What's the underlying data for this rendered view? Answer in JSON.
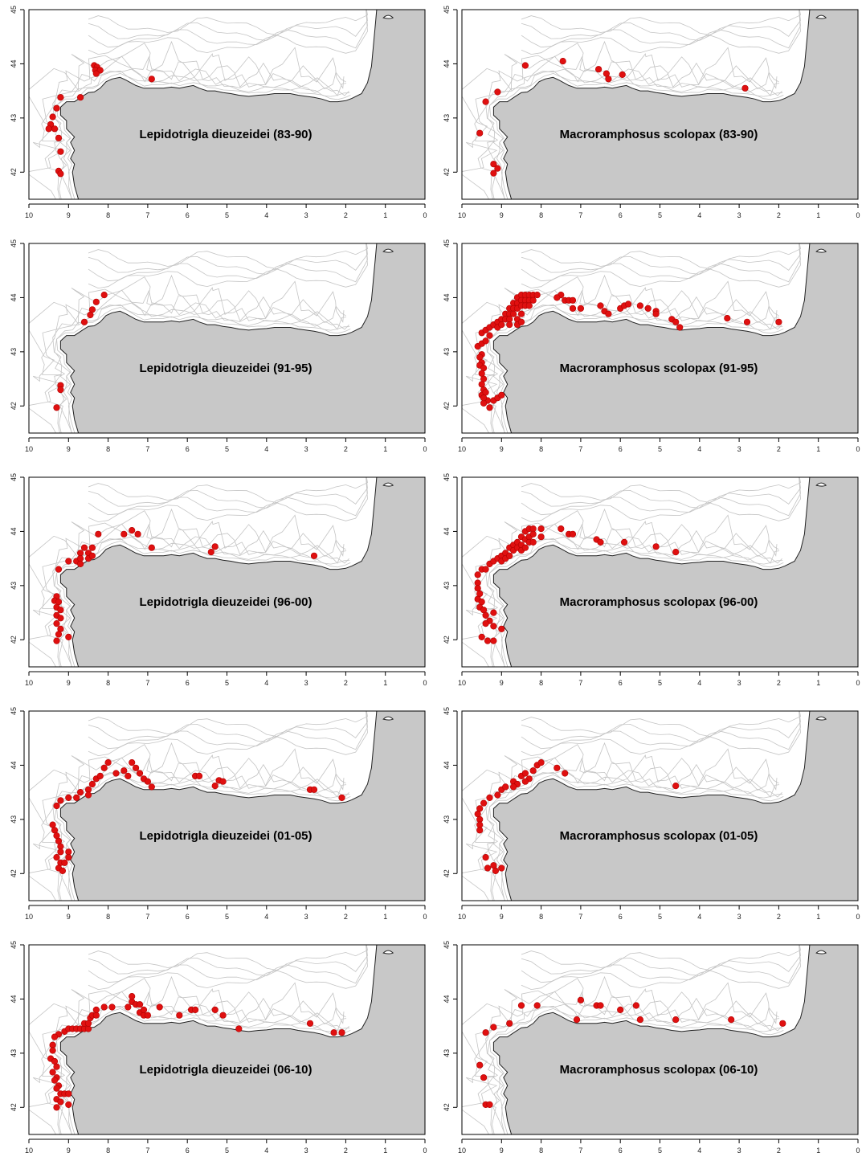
{
  "axes": {
    "x_ticks": [
      "10",
      "9",
      "8",
      "7",
      "6",
      "5",
      "4",
      "3",
      "2",
      "1",
      "0"
    ],
    "y_ticks": [
      "42",
      "43",
      "44",
      "45"
    ],
    "xlim": [
      10,
      0
    ],
    "ylim": [
      41.5,
      45
    ],
    "grid": false
  },
  "colors": {
    "land": "#c8c8c8",
    "ocean": "#ffffff",
    "isobath": "#c4c4c4",
    "point": "#e01010",
    "point_stroke": "#b00000",
    "frame": "#000000"
  },
  "panels": [
    {
      "title": "Lepidotrigla dieuzeidei (83-90)",
      "points": [
        [
          8.35,
          43.97
        ],
        [
          8.28,
          43.94
        ],
        [
          8.32,
          43.88
        ],
        [
          8.2,
          43.88
        ],
        [
          8.3,
          43.82
        ],
        [
          6.9,
          43.72
        ],
        [
          8.7,
          43.38
        ],
        [
          9.2,
          43.38
        ],
        [
          9.3,
          43.18
        ],
        [
          9.4,
          43.02
        ],
        [
          9.45,
          42.88
        ],
        [
          9.35,
          42.8
        ],
        [
          9.5,
          42.8
        ],
        [
          9.25,
          42.63
        ],
        [
          9.2,
          42.38
        ],
        [
          9.25,
          42.02
        ],
        [
          9.2,
          41.97
        ]
      ]
    },
    {
      "title": "Macroramphosus scolopax (83-90)",
      "points": [
        [
          8.4,
          43.97
        ],
        [
          7.45,
          44.05
        ],
        [
          6.55,
          43.9
        ],
        [
          6.35,
          43.82
        ],
        [
          6.3,
          43.72
        ],
        [
          5.95,
          43.8
        ],
        [
          2.85,
          43.55
        ],
        [
          9.1,
          43.48
        ],
        [
          9.4,
          43.3
        ],
        [
          9.55,
          42.72
        ],
        [
          9.2,
          42.15
        ],
        [
          9.2,
          41.98
        ],
        [
          9.1,
          42.07
        ]
      ]
    },
    {
      "title": "Lepidotrigla dieuzeidei (91-95)",
      "points": [
        [
          8.1,
          44.05
        ],
        [
          8.3,
          43.92
        ],
        [
          8.4,
          43.78
        ],
        [
          8.45,
          43.68
        ],
        [
          8.6,
          43.55
        ],
        [
          9.2,
          42.38
        ],
        [
          9.2,
          42.3
        ],
        [
          9.3,
          41.97
        ]
      ]
    },
    {
      "title": "Macroramphosus scolopax (91-95)",
      "points": [
        [
          9.5,
          43.35
        ],
        [
          9.4,
          43.4
        ],
        [
          9.3,
          43.45
        ],
        [
          9.2,
          43.5
        ],
        [
          9.1,
          43.55
        ],
        [
          9.0,
          43.6
        ],
        [
          8.9,
          43.7
        ],
        [
          8.8,
          43.8
        ],
        [
          8.7,
          43.9
        ],
        [
          8.6,
          44.0
        ],
        [
          8.5,
          44.05
        ],
        [
          8.4,
          44.05
        ],
        [
          8.3,
          44.05
        ],
        [
          8.2,
          44.05
        ],
        [
          8.1,
          44.05
        ],
        [
          9.1,
          43.45
        ],
        [
          9.0,
          43.5
        ],
        [
          8.9,
          43.6
        ],
        [
          8.8,
          43.7
        ],
        [
          8.7,
          43.8
        ],
        [
          8.6,
          43.9
        ],
        [
          8.5,
          43.95
        ],
        [
          8.4,
          43.95
        ],
        [
          8.3,
          43.95
        ],
        [
          8.2,
          43.95
        ],
        [
          8.8,
          43.6
        ],
        [
          8.7,
          43.7
        ],
        [
          8.6,
          43.8
        ],
        [
          8.5,
          43.85
        ],
        [
          8.4,
          43.85
        ],
        [
          8.3,
          43.85
        ],
        [
          8.8,
          43.5
        ],
        [
          8.6,
          43.6
        ],
        [
          8.5,
          43.7
        ],
        [
          8.6,
          43.5
        ],
        [
          8.5,
          43.55
        ],
        [
          9.6,
          43.1
        ],
        [
          9.5,
          43.15
        ],
        [
          9.5,
          42.95
        ],
        [
          9.55,
          42.9
        ],
        [
          9.5,
          42.8
        ],
        [
          9.55,
          42.75
        ],
        [
          9.45,
          42.7
        ],
        [
          9.5,
          42.6
        ],
        [
          9.45,
          42.5
        ],
        [
          9.5,
          42.4
        ],
        [
          9.45,
          42.3
        ],
        [
          9.5,
          42.2
        ],
        [
          9.4,
          42.25
        ],
        [
          9.35,
          42.1
        ],
        [
          9.45,
          42.05
        ],
        [
          9.3,
          41.97
        ],
        [
          9.2,
          42.1
        ],
        [
          9.1,
          42.15
        ],
        [
          9.0,
          42.2
        ],
        [
          9.45,
          42.15
        ],
        [
          9.4,
          43.2
        ],
        [
          9.3,
          43.3
        ],
        [
          7.5,
          44.05
        ],
        [
          7.4,
          43.95
        ],
        [
          7.3,
          43.95
        ],
        [
          7.2,
          43.95
        ],
        [
          7.6,
          44.0
        ],
        [
          7.2,
          43.8
        ],
        [
          7.0,
          43.8
        ],
        [
          6.5,
          43.85
        ],
        [
          6.4,
          43.75
        ],
        [
          6.3,
          43.7
        ],
        [
          6.0,
          43.8
        ],
        [
          5.9,
          43.85
        ],
        [
          5.8,
          43.88
        ],
        [
          5.5,
          43.85
        ],
        [
          5.3,
          43.8
        ],
        [
          5.1,
          43.75
        ],
        [
          5.1,
          43.7
        ],
        [
          4.7,
          43.6
        ],
        [
          4.6,
          43.55
        ],
        [
          4.5,
          43.45
        ],
        [
          3.3,
          43.62
        ],
        [
          2.8,
          43.55
        ],
        [
          2.0,
          43.55
        ]
      ]
    },
    {
      "title": "Lepidotrigla dieuzeidei (96-00)",
      "points": [
        [
          9.3,
          42.8
        ],
        [
          9.35,
          42.72
        ],
        [
          9.25,
          42.7
        ],
        [
          9.3,
          42.6
        ],
        [
          9.2,
          42.55
        ],
        [
          9.3,
          42.45
        ],
        [
          9.2,
          42.4
        ],
        [
          9.3,
          42.3
        ],
        [
          9.2,
          42.2
        ],
        [
          9.25,
          42.1
        ],
        [
          9.3,
          41.98
        ],
        [
          9.0,
          42.05
        ],
        [
          9.25,
          43.3
        ],
        [
          9.0,
          43.45
        ],
        [
          8.8,
          43.45
        ],
        [
          8.7,
          43.6
        ],
        [
          8.7,
          43.5
        ],
        [
          8.7,
          43.4
        ],
        [
          8.6,
          43.7
        ],
        [
          8.5,
          43.6
        ],
        [
          8.5,
          43.5
        ],
        [
          8.4,
          43.7
        ],
        [
          8.4,
          43.55
        ],
        [
          8.25,
          43.95
        ],
        [
          7.6,
          43.95
        ],
        [
          7.4,
          44.02
        ],
        [
          7.25,
          43.95
        ],
        [
          6.9,
          43.7
        ],
        [
          5.3,
          43.72
        ],
        [
          5.4,
          43.62
        ],
        [
          2.8,
          43.55
        ]
      ]
    },
    {
      "title": "Macroramphosus scolopax (96-00)",
      "points": [
        [
          9.6,
          43.2
        ],
        [
          9.5,
          43.3
        ],
        [
          9.4,
          43.3
        ],
        [
          9.3,
          43.4
        ],
        [
          9.2,
          43.45
        ],
        [
          9.1,
          43.5
        ],
        [
          9.0,
          43.55
        ],
        [
          8.9,
          43.6
        ],
        [
          8.8,
          43.7
        ],
        [
          8.7,
          43.75
        ],
        [
          8.6,
          43.8
        ],
        [
          8.5,
          43.9
        ],
        [
          8.4,
          44.0
        ],
        [
          8.3,
          44.05
        ],
        [
          8.2,
          44.05
        ],
        [
          8.0,
          44.05
        ],
        [
          9.0,
          43.45
        ],
        [
          8.9,
          43.5
        ],
        [
          8.8,
          43.55
        ],
        [
          8.7,
          43.65
        ],
        [
          8.6,
          43.7
        ],
        [
          8.5,
          43.75
        ],
        [
          8.4,
          43.85
        ],
        [
          8.3,
          43.9
        ],
        [
          8.2,
          43.95
        ],
        [
          8.0,
          43.9
        ],
        [
          8.5,
          43.65
        ],
        [
          8.4,
          43.7
        ],
        [
          8.3,
          43.8
        ],
        [
          8.2,
          43.8
        ],
        [
          9.6,
          43.05
        ],
        [
          9.6,
          42.95
        ],
        [
          9.55,
          42.85
        ],
        [
          9.6,
          42.75
        ],
        [
          9.5,
          42.7
        ],
        [
          9.55,
          42.6
        ],
        [
          9.45,
          42.55
        ],
        [
          9.4,
          42.45
        ],
        [
          9.3,
          42.35
        ],
        [
          9.4,
          42.3
        ],
        [
          9.2,
          42.25
        ],
        [
          9.5,
          42.05
        ],
        [
          9.35,
          41.98
        ],
        [
          9.2,
          41.98
        ],
        [
          9.0,
          42.2
        ],
        [
          9.2,
          42.5
        ],
        [
          7.5,
          44.05
        ],
        [
          7.3,
          43.95
        ],
        [
          7.2,
          43.95
        ],
        [
          6.6,
          43.85
        ],
        [
          6.5,
          43.8
        ],
        [
          5.9,
          43.8
        ],
        [
          5.1,
          43.72
        ],
        [
          4.6,
          43.62
        ]
      ]
    },
    {
      "title": "Lepidotrigla dieuzeidei (01-05)",
      "points": [
        [
          9.2,
          43.35
        ],
        [
          9.3,
          43.25
        ],
        [
          9.0,
          43.4
        ],
        [
          8.8,
          43.4
        ],
        [
          8.7,
          43.5
        ],
        [
          8.5,
          43.55
        ],
        [
          8.5,
          43.45
        ],
        [
          8.4,
          43.65
        ],
        [
          8.3,
          43.75
        ],
        [
          8.2,
          43.8
        ],
        [
          8.1,
          43.95
        ],
        [
          8.0,
          44.05
        ],
        [
          7.8,
          43.85
        ],
        [
          7.6,
          43.9
        ],
        [
          7.5,
          43.8
        ],
        [
          7.4,
          44.05
        ],
        [
          7.3,
          43.95
        ],
        [
          7.2,
          43.85
        ],
        [
          7.1,
          43.75
        ],
        [
          7.0,
          43.7
        ],
        [
          6.9,
          43.6
        ],
        [
          5.8,
          43.8
        ],
        [
          5.7,
          43.8
        ],
        [
          5.3,
          43.62
        ],
        [
          5.2,
          43.72
        ],
        [
          5.1,
          43.7
        ],
        [
          2.9,
          43.55
        ],
        [
          2.8,
          43.55
        ],
        [
          2.1,
          43.4
        ],
        [
          9.4,
          42.9
        ],
        [
          9.35,
          42.8
        ],
        [
          9.3,
          42.7
        ],
        [
          9.25,
          42.6
        ],
        [
          9.2,
          42.5
        ],
        [
          9.2,
          42.4
        ],
        [
          9.0,
          42.4
        ],
        [
          9.3,
          42.3
        ],
        [
          9.2,
          42.2
        ],
        [
          9.25,
          42.1
        ],
        [
          9.15,
          42.05
        ],
        [
          9.1,
          42.2
        ],
        [
          9.0,
          42.3
        ]
      ]
    },
    {
      "title": "Macroramphosus scolopax (01-05)",
      "points": [
        [
          9.55,
          43.2
        ],
        [
          9.45,
          43.3
        ],
        [
          9.3,
          43.4
        ],
        [
          9.1,
          43.45
        ],
        [
          9.0,
          43.55
        ],
        [
          8.9,
          43.6
        ],
        [
          8.7,
          43.7
        ],
        [
          8.5,
          43.8
        ],
        [
          8.4,
          43.85
        ],
        [
          8.2,
          43.9
        ],
        [
          8.1,
          44.0
        ],
        [
          8.0,
          44.05
        ],
        [
          8.3,
          43.75
        ],
        [
          8.4,
          43.7
        ],
        [
          8.6,
          43.65
        ],
        [
          8.7,
          43.6
        ],
        [
          7.6,
          43.95
        ],
        [
          7.4,
          43.85
        ],
        [
          9.6,
          43.1
        ],
        [
          9.55,
          43.0
        ],
        [
          9.55,
          42.9
        ],
        [
          9.55,
          42.8
        ],
        [
          9.4,
          42.3
        ],
        [
          9.35,
          42.1
        ],
        [
          9.2,
          42.15
        ],
        [
          9.15,
          42.05
        ],
        [
          9.0,
          42.1
        ],
        [
          4.6,
          43.62
        ]
      ]
    },
    {
      "title": "Lepidotrigla dieuzeidei (06-10)",
      "points": [
        [
          9.25,
          43.35
        ],
        [
          9.35,
          43.3
        ],
        [
          9.1,
          43.4
        ],
        [
          9.0,
          43.45
        ],
        [
          8.9,
          43.45
        ],
        [
          8.8,
          43.45
        ],
        [
          8.7,
          43.45
        ],
        [
          8.6,
          43.45
        ],
        [
          8.5,
          43.45
        ],
        [
          8.6,
          43.55
        ],
        [
          8.5,
          43.55
        ],
        [
          8.45,
          43.65
        ],
        [
          8.4,
          43.7
        ],
        [
          8.3,
          43.7
        ],
        [
          8.3,
          43.8
        ],
        [
          8.1,
          43.85
        ],
        [
          7.9,
          43.85
        ],
        [
          7.5,
          43.85
        ],
        [
          7.4,
          43.95
        ],
        [
          7.3,
          43.9
        ],
        [
          7.2,
          43.75
        ],
        [
          7.1,
          43.7
        ],
        [
          7.0,
          43.7
        ],
        [
          7.4,
          44.05
        ],
        [
          7.2,
          43.9
        ],
        [
          7.1,
          43.8
        ],
        [
          6.7,
          43.85
        ],
        [
          6.2,
          43.7
        ],
        [
          5.9,
          43.8
        ],
        [
          5.8,
          43.8
        ],
        [
          5.3,
          43.8
        ],
        [
          5.1,
          43.7
        ],
        [
          4.7,
          43.45
        ],
        [
          2.9,
          43.55
        ],
        [
          2.3,
          43.38
        ],
        [
          2.1,
          43.38
        ],
        [
          9.4,
          43.15
        ],
        [
          9.4,
          43.05
        ],
        [
          9.45,
          42.9
        ],
        [
          9.35,
          42.85
        ],
        [
          9.3,
          42.75
        ],
        [
          9.4,
          42.65
        ],
        [
          9.3,
          42.55
        ],
        [
          9.35,
          42.5
        ],
        [
          9.25,
          42.4
        ],
        [
          9.3,
          42.35
        ],
        [
          9.2,
          42.25
        ],
        [
          9.1,
          42.25
        ],
        [
          9.0,
          42.25
        ],
        [
          9.3,
          42.15
        ],
        [
          9.2,
          42.1
        ],
        [
          9.3,
          42.0
        ],
        [
          9.0,
          42.05
        ]
      ]
    },
    {
      "title": "Macroramphosus scolopax (06-10)",
      "points": [
        [
          8.5,
          43.88
        ],
        [
          8.1,
          43.88
        ],
        [
          7.0,
          43.98
        ],
        [
          6.6,
          43.88
        ],
        [
          6.5,
          43.88
        ],
        [
          5.6,
          43.88
        ],
        [
          6.0,
          43.8
        ],
        [
          8.8,
          43.55
        ],
        [
          7.1,
          43.62
        ],
        [
          5.5,
          43.62
        ],
        [
          4.6,
          43.62
        ],
        [
          3.2,
          43.62
        ],
        [
          1.9,
          43.55
        ],
        [
          9.2,
          43.48
        ],
        [
          9.4,
          43.38
        ],
        [
          9.55,
          42.78
        ],
        [
          9.45,
          42.55
        ],
        [
          9.4,
          42.05
        ],
        [
          9.3,
          42.05
        ]
      ]
    }
  ]
}
